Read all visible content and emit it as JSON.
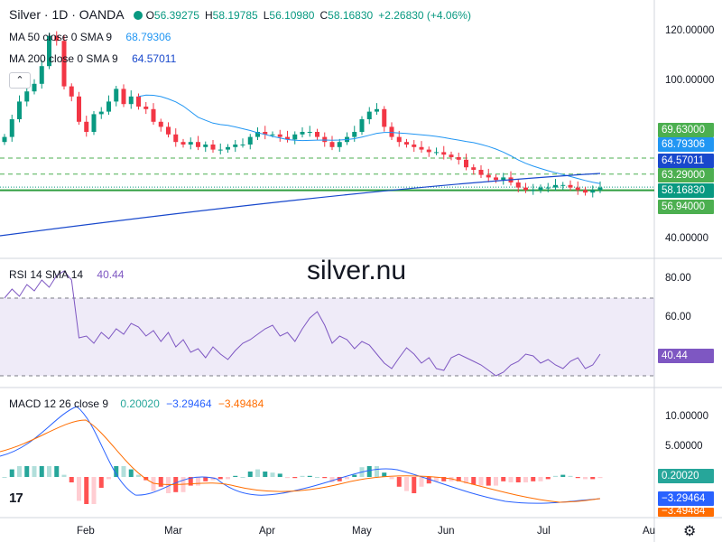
{
  "header": {
    "symbol": "Silver · 1D · OANDA",
    "ohlc": [
      {
        "label": "O",
        "value": "56.39275"
      },
      {
        "label": "H",
        "value": "58.19785"
      },
      {
        "label": "L",
        "value": "56.10980"
      },
      {
        "label": "C",
        "value": "58.16830"
      }
    ],
    "change": "+2.26830 (+4.06%)"
  },
  "indicators": {
    "ma50": {
      "label": "MA 50 close 0 SMA 9",
      "value": "68.79306",
      "color": "#2196f3"
    },
    "ma200": {
      "label": "MA 200 close 0 SMA 9",
      "value": "64.57011",
      "color": "#1848cc"
    },
    "rsi": {
      "label": "RSI 14 SMA 14",
      "value": "40.44",
      "color": "#7e57c2"
    },
    "macd": {
      "label": "MACD 12 26 close 9",
      "values": [
        "0.20020",
        "−3.29464",
        "−3.49484"
      ],
      "colors": [
        "#26a69a",
        "#2962ff",
        "#ff6d00"
      ]
    }
  },
  "watermark": "silver.nu",
  "price_tags": [
    {
      "value": "69.63000",
      "color": "#4caf50"
    },
    {
      "value": "68.79306",
      "color": "#2196f3"
    },
    {
      "value": "64.57011",
      "color": "#1848cc"
    },
    {
      "value": "63.29000",
      "color": "#4caf50"
    },
    {
      "value": "58.16830",
      "color": "#089981"
    },
    {
      "value": "56.94000",
      "color": "#4caf50"
    }
  ],
  "rsi_tag": {
    "value": "40.44",
    "color": "#7e57c2"
  },
  "macd_tags": [
    {
      "value": "0.20020",
      "color": "#26a69a"
    },
    {
      "value": "−3.29464",
      "color": "#2962ff"
    },
    {
      "value": "−3.49484",
      "color": "#ff6d00"
    }
  ],
  "price_axis": [
    "120.00000",
    "100.00000",
    "40.00000"
  ],
  "rsi_axis": [
    "80.00",
    "60.00"
  ],
  "macd_axis": [
    "10.00000",
    "5.00000"
  ],
  "time_axis": [
    "Feb",
    "Mar",
    "Apr",
    "May",
    "Jun",
    "Jul",
    "Au"
  ],
  "icons": {
    "collapse": "chevron-up-icon",
    "logo": "tradingview-logo",
    "settings": "gear-icon",
    "visibility": "eye-icon"
  },
  "chart_data": {
    "type": "candlestick",
    "price_levels": {
      "resistance": 69.63,
      "middle": 63.29,
      "support": 56.94,
      "last": 58.1683
    },
    "close_path": [
      78,
      85,
      92,
      96,
      99,
      106,
      118,
      116,
      98,
      94,
      84,
      80,
      87,
      88,
      92,
      97,
      91,
      94,
      90,
      89,
      84,
      82,
      79,
      76,
      75,
      76,
      74,
      75,
      73,
      73,
      74,
      75,
      75,
      78,
      80,
      79,
      79,
      78,
      77,
      79,
      80,
      80,
      78,
      76,
      74,
      76,
      78,
      80,
      85,
      88,
      89,
      82,
      78,
      76,
      75,
      74,
      73,
      72,
      72,
      71,
      70,
      69,
      66,
      65,
      63,
      62,
      61,
      62,
      60,
      58,
      57,
      57,
      58,
      58,
      59,
      59,
      58,
      57,
      56,
      57,
      58
    ]
  }
}
